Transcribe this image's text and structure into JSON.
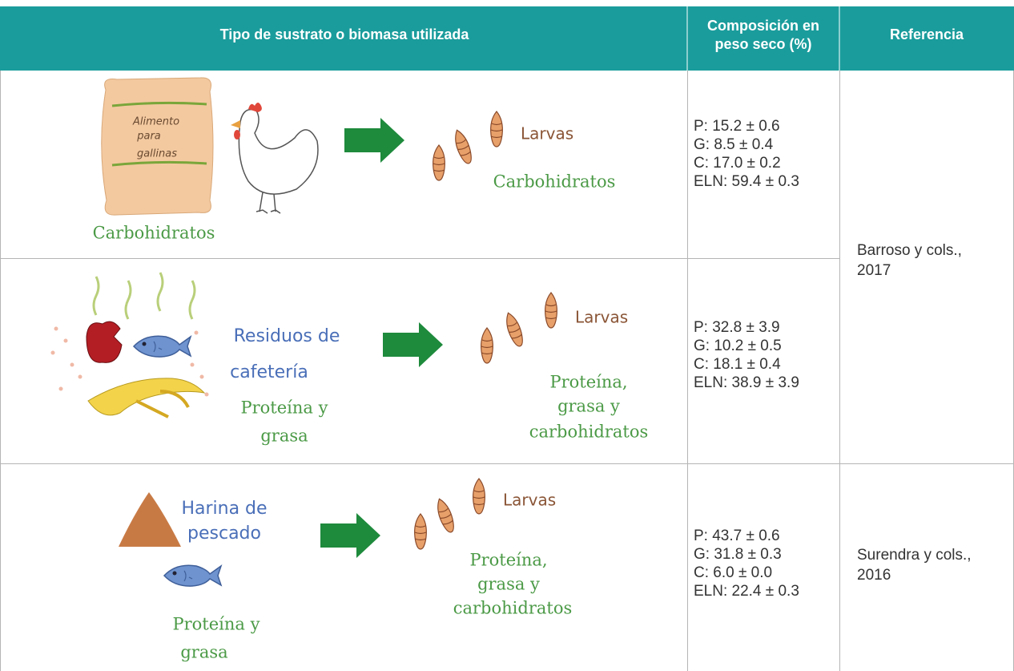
{
  "table": {
    "header": {
      "substrate": "Tipo de sustrato o biomasa utilizada",
      "composition": [
        "Composición en",
        "peso seco (%)"
      ],
      "reference": "Referencia"
    },
    "rows": [
      {
        "illustration": {
          "sack_label": [
            "Alimento",
            "para",
            "gallinas"
          ],
          "source_label": [
            "Carbohidratos"
          ],
          "larvae_label": "Larvas",
          "result_label": [
            "Carbohidratos"
          ]
        },
        "composition": [
          "P: 15.2 ± 0.6",
          "G: 8.5 ± 0.4",
          "C: 17.0 ± 0.2",
          "ELN: 59.4 ± 0.3"
        ]
      },
      {
        "illustration": {
          "source_name": [
            "Residuos de",
            "cafetería"
          ],
          "source_label": [
            "Proteína y",
            "grasa"
          ],
          "larvae_label": "Larvas",
          "result_label": [
            "Proteína,",
            "grasa y",
            "carbohidratos"
          ]
        },
        "composition": [
          "P: 32.8 ± 3.9",
          "G: 10.2 ± 0.5",
          "C: 18.1 ± 0.4",
          "ELN: 38.9 ± 3.9"
        ]
      },
      {
        "illustration": {
          "source_name": [
            "Harina de",
            "pescado"
          ],
          "source_label": [
            "Proteína y",
            "grasa"
          ],
          "larvae_label": "Larvas",
          "result_label": [
            "Proteína,",
            "grasa y",
            "carbohidratos"
          ]
        },
        "composition": [
          "P: 43.7 ± 0.6",
          "G: 31.8 ± 0.3",
          "C: 6.0 ± 0.0",
          "ELN: 22.4 ± 0.3"
        ]
      }
    ],
    "references": [
      [
        "Barroso y cols.,",
        "2017"
      ],
      [
        "Surendra y cols.,",
        "2016"
      ]
    ]
  }
}
